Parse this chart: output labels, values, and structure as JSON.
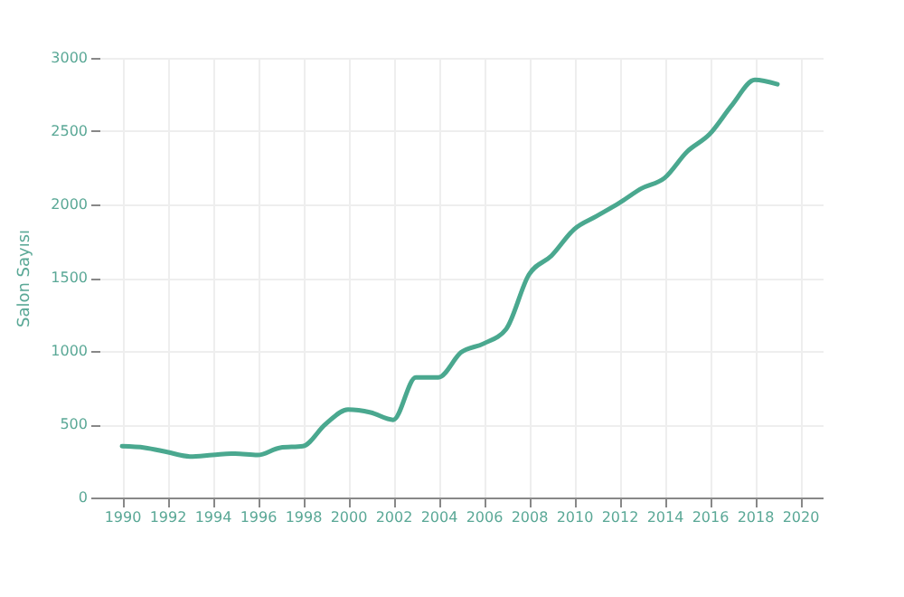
{
  "chart_data": {
    "type": "line",
    "ylabel": "Salon Sayısı",
    "x": [
      1990,
      1991,
      1992,
      1993,
      1994,
      1995,
      1996,
      1997,
      1998,
      1999,
      2000,
      2001,
      2002,
      2003,
      2004,
      2005,
      2006,
      2007,
      2008,
      2009,
      2010,
      2011,
      2012,
      2013,
      2014,
      2015,
      2016,
      2017,
      2018,
      2019
    ],
    "series": [
      {
        "color": "#4aa88f",
        "values": [
          350,
          340,
          310,
          280,
          290,
          300,
          290,
          340,
          350,
          500,
          600,
          580,
          530,
          820,
          820,
          990,
          1050,
          1150,
          1520,
          1650,
          1830,
          1920,
          2010,
          2110,
          2180,
          2360,
          2480,
          2680,
          2850,
          2820
        ]
      }
    ],
    "xlim": [
      1989,
      2021
    ],
    "xticks": [
      1990,
      1992,
      1994,
      1996,
      1998,
      2000,
      2002,
      2004,
      2006,
      2008,
      2010,
      2012,
      2014,
      2016,
      2018,
      2020
    ],
    "ylim": [
      0,
      3000
    ],
    "yticks": [
      0,
      500,
      1000,
      1500,
      2000,
      2500,
      3000
    ],
    "grid": true,
    "marker": "none",
    "line_style": "solid"
  }
}
